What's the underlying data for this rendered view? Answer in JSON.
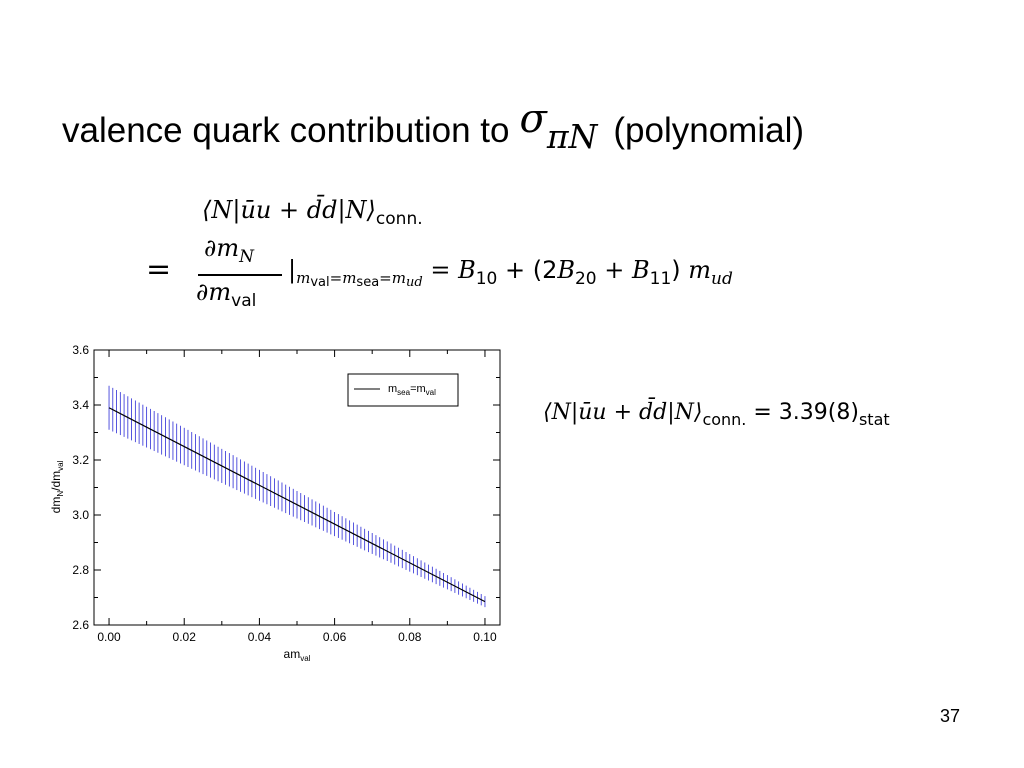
{
  "slide": {
    "title_text": "valence quark contribution to",
    "title_sigma": "σ",
    "title_sigma_sub": "πN",
    "title_suffix": "(polynomial)",
    "page_number": "37"
  },
  "equation": {
    "line1_bra": "⟨N|ūu + ",
    "line1_dbar": "d̄d",
    "line1_ket": "|N⟩",
    "line1_sub": "conn.",
    "equals": "=",
    "frac_num": "∂m",
    "frac_num_sub": "N",
    "frac_den": "∂m",
    "frac_den_sub": "val",
    "cond_bar": "|",
    "cond_m1": "m",
    "cond_m1_sub": "val",
    "cond_eq1": "=",
    "cond_m2": "m",
    "cond_m2_sub": "sea",
    "cond_eq2": "=",
    "cond_m3": "m",
    "cond_m3_sub": "ud",
    "rhs_eq": " = ",
    "rhs_b10": "B",
    "rhs_b10_sub": "10",
    "rhs_plus1": " + (2",
    "rhs_b20": "B",
    "rhs_b20_sub": "20",
    "rhs_plus2": " + ",
    "rhs_b11": "B",
    "rhs_b11_sub": "11",
    "rhs_close": ") ",
    "rhs_m": "m",
    "rhs_m_sub": "ud"
  },
  "result": {
    "bra": "⟨N|ūu + ",
    "dbar": "d̄d",
    "ket": "|N⟩",
    "sub": "conn.",
    "value": " = 3.39(8)",
    "value_sub": "stat"
  },
  "chart_data": {
    "type": "line",
    "xlabel": "am",
    "xlabel_sub": "val",
    "ylabel": "dm",
    "ylabel_sub1": "N",
    "ylabel_mid": "/dm",
    "ylabel_sub2": "val",
    "xlim": [
      -0.004,
      0.104
    ],
    "ylim": [
      2.6,
      3.6
    ],
    "xticks": [
      "0.00",
      "0.02",
      "0.04",
      "0.06",
      "0.08",
      "0.10"
    ],
    "xtick_values": [
      0.0,
      0.02,
      0.04,
      0.06,
      0.08,
      0.1
    ],
    "yticks": [
      "2.6",
      "2.8",
      "3.0",
      "3.2",
      "3.4",
      "3.6"
    ],
    "ytick_values": [
      2.6,
      2.8,
      3.0,
      3.2,
      3.4,
      3.6
    ],
    "grid": false,
    "legend_position": "top-right",
    "series": [
      {
        "name": "m",
        "name_sub1": "sea",
        "name_mid": "=m",
        "name_sub2": "val",
        "line_color": "#000000",
        "band_color": "#2b2bd6",
        "x_start": 0.0,
        "x_end": 0.1,
        "y_start": 3.39,
        "y_end": 2.685,
        "err_start": 0.08,
        "err_end": 0.02,
        "err_samples": 100
      }
    ]
  }
}
